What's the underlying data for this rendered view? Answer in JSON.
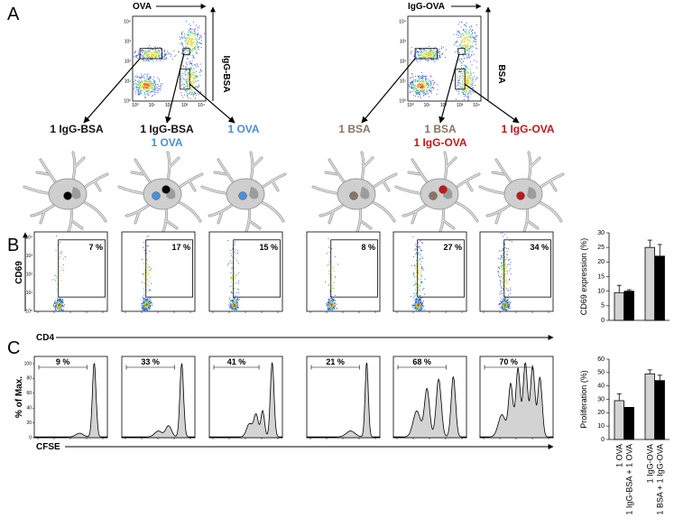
{
  "panel_labels": [
    "A",
    "B",
    "C"
  ],
  "panel_a": {
    "plots": [
      {
        "x_label": "OVA",
        "y_label": "IgG-BSA"
      },
      {
        "x_label": "IgG-OVA",
        "y_label": "BSA"
      }
    ],
    "ticks": [
      "10⁰",
      "10¹",
      "10²",
      "10³",
      "10⁴"
    ],
    "populations": [
      {
        "lines": [
          {
            "text": "1 IgG-BSA",
            "color": "#111111"
          }
        ]
      },
      {
        "lines": [
          {
            "text": "1 IgG-BSA",
            "color": "#111111"
          },
          {
            "text": "1 OVA",
            "color": "#4a8fd6"
          }
        ]
      },
      {
        "lines": [
          {
            "text": "1 OVA",
            "color": "#4a8fd6"
          }
        ]
      },
      {
        "lines": [
          {
            "text": "1 BSA",
            "color": "#8b7462"
          }
        ]
      },
      {
        "lines": [
          {
            "text": "1 BSA",
            "color": "#8b7462"
          },
          {
            "text": "1 IgG-OVA",
            "color": "#c0171c"
          }
        ]
      },
      {
        "lines": [
          {
            "text": "1 IgG-OVA",
            "color": "#c0171c"
          }
        ]
      }
    ]
  },
  "panel_b": {
    "y_label": "CD69",
    "x_label": "CD4",
    "ticks": [
      "10⁰",
      "10¹",
      "10²",
      "10³",
      "10⁴"
    ],
    "percentages": [
      "7 %",
      "17 %",
      "15 %",
      "8 %",
      "27 %",
      "34 %"
    ],
    "chart": {
      "type": "bar",
      "y_label": "CD69 expression (%)",
      "ylim": [
        0,
        30
      ],
      "yticks": [
        0,
        5,
        10,
        15,
        20,
        25,
        30
      ],
      "series": [
        {
          "color": "#d3d3d3",
          "values": [
            9.5,
            25
          ],
          "errors": [
            2.5,
            2.5
          ]
        },
        {
          "color": "#000000",
          "values": [
            10,
            22
          ],
          "errors": [
            0.5,
            4
          ]
        }
      ]
    }
  },
  "panel_c": {
    "y_label": "% of Max.",
    "x_label": "CFSE",
    "yticks": [
      0,
      20,
      40,
      60,
      80,
      100
    ],
    "percentages": [
      "9 %",
      "33 %",
      "41 %",
      "21 %",
      "68 %",
      "70 %"
    ],
    "chart": {
      "type": "bar",
      "y_label": "Proliferation (%)",
      "ylim": [
        0,
        60
      ],
      "yticks": [
        0,
        10,
        20,
        30,
        40,
        50,
        60
      ],
      "categories": [
        "1 OVA",
        "1 IgG-BSA + 1 OVA",
        "1 IgG-OVA",
        "1 BSA + 1 IgG-OVA"
      ],
      "series": [
        {
          "color": "#d3d3d3",
          "values": [
            29,
            49
          ],
          "errors": [
            5,
            3
          ]
        },
        {
          "color": "#000000",
          "values": [
            24,
            44
          ],
          "errors": [
            0,
            4
          ]
        }
      ]
    }
  }
}
